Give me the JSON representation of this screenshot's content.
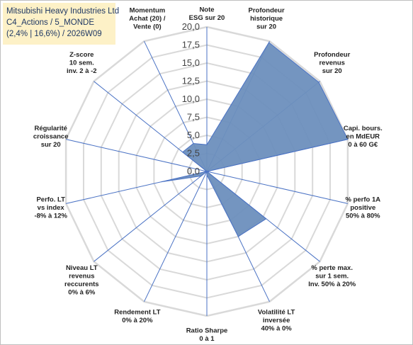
{
  "header": {
    "line1": "Mitsubishi Heavy Industries Ltd",
    "line2": "C4_Actions / 5_MONDE",
    "line3": "(2,4% | 16,6%) / 2026W09"
  },
  "chart_data": {
    "type": "radar",
    "rmin": 0,
    "rmax": 20,
    "tick_labels": [
      "0,0",
      "2,5",
      "5,0",
      "7,5",
      "10,0",
      "12,5",
      "15,0",
      "17,5",
      "20,0"
    ],
    "axes": [
      [
        "Note",
        "ESG sur 20"
      ],
      [
        "Profondeur",
        "historique",
        "sur 20"
      ],
      [
        "Profondeur",
        "revenus",
        "sur 20"
      ],
      [
        "Capi. bours.",
        "en MdEUR",
        "0 à 60 G€"
      ],
      [
        "% perfo 1A",
        "positive",
        "50% à 80%"
      ],
      [
        "% perte max.",
        "sur 1 sem.",
        "Inv. 50% à 20%"
      ],
      [
        "Volatilité LT",
        "inversée",
        "40% à 0%"
      ],
      [
        "Ratio Sharpe",
        "0 à 1"
      ],
      [
        "Rendement LT",
        "0% à 20%"
      ],
      [
        "Niveau LT",
        "revenus",
        "reccurents",
        "0% à 6%"
      ],
      [
        "Perfo. LT",
        "vs index",
        "-8% à 12%"
      ],
      [
        "Régularité",
        "croissance",
        "sur 20"
      ],
      [
        "Z-score",
        "10 sem.",
        "inv. 2 à -2"
      ],
      [
        "Momentum",
        "Achat (20) /",
        "Vente (0)"
      ]
    ],
    "values": [
      3.7,
      19.8,
      19.8,
      20,
      0,
      10.5,
      10,
      0.5,
      0,
      1,
      6.5,
      0,
      4.3,
      4.3
    ],
    "series_color": "#6d8fbd",
    "line_color": "#4a72c4",
    "grid_color": "#d9d9d9"
  }
}
